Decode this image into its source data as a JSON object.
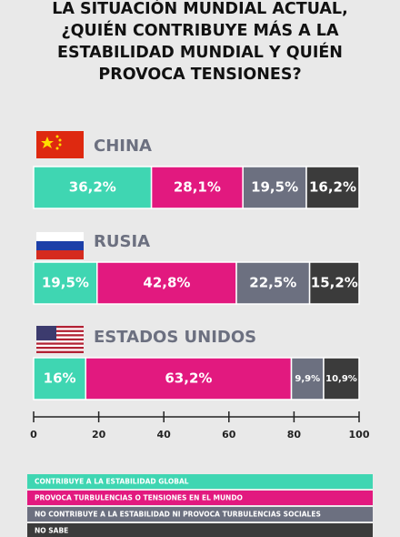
{
  "chart_data": {
    "type": "stacked_bar_horizontal",
    "title": [
      "LA SITUACIÓN MUNDIAL ACTUAL,",
      "¿QUIÉN CONTRIBUYE MÁS A LA",
      "ESTABILIDAD MUNDIAL Y QUIÉN",
      "PROVOCA TENSIONES?"
    ],
    "categories": [
      "CHINA",
      "RUSIA",
      "ESTADOS UNIDOS"
    ],
    "series": [
      {
        "name": "CONTRIBUYE A LA ESTABILIDAD GLOBAL",
        "color": "#3fd6b2",
        "values": [
          36.2,
          19.5,
          16
        ],
        "value_labels": [
          "36,2%",
          "19,5%",
          "16%"
        ]
      },
      {
        "name": "PROVOCA TURBULENCIAS O TENSIONES EN EL MUNDO",
        "color": "#e2197f",
        "values": [
          28.1,
          42.8,
          63.2
        ],
        "value_labels": [
          "28,1%",
          "42,8%",
          "63,2%"
        ]
      },
      {
        "name": "NO CONTRIBUYE A LA ESTABILIDAD NI PROVOCA TURBULENCIAS SOCIALES",
        "color": "#6c7080",
        "values": [
          19.5,
          22.5,
          9.9
        ],
        "value_labels": [
          "19,5%",
          "22,5%",
          "9,9%"
        ]
      },
      {
        "name": "NO SABE",
        "color": "#3b3b3b",
        "values": [
          16.2,
          15.2,
          10.9
        ],
        "value_labels": [
          "16,2%",
          "15,2%",
          "10,9%"
        ]
      }
    ],
    "xlim": [
      0,
      100
    ],
    "xticks": [
      0,
      20,
      40,
      60,
      80,
      100
    ],
    "category_label_color": "#6c7080"
  }
}
